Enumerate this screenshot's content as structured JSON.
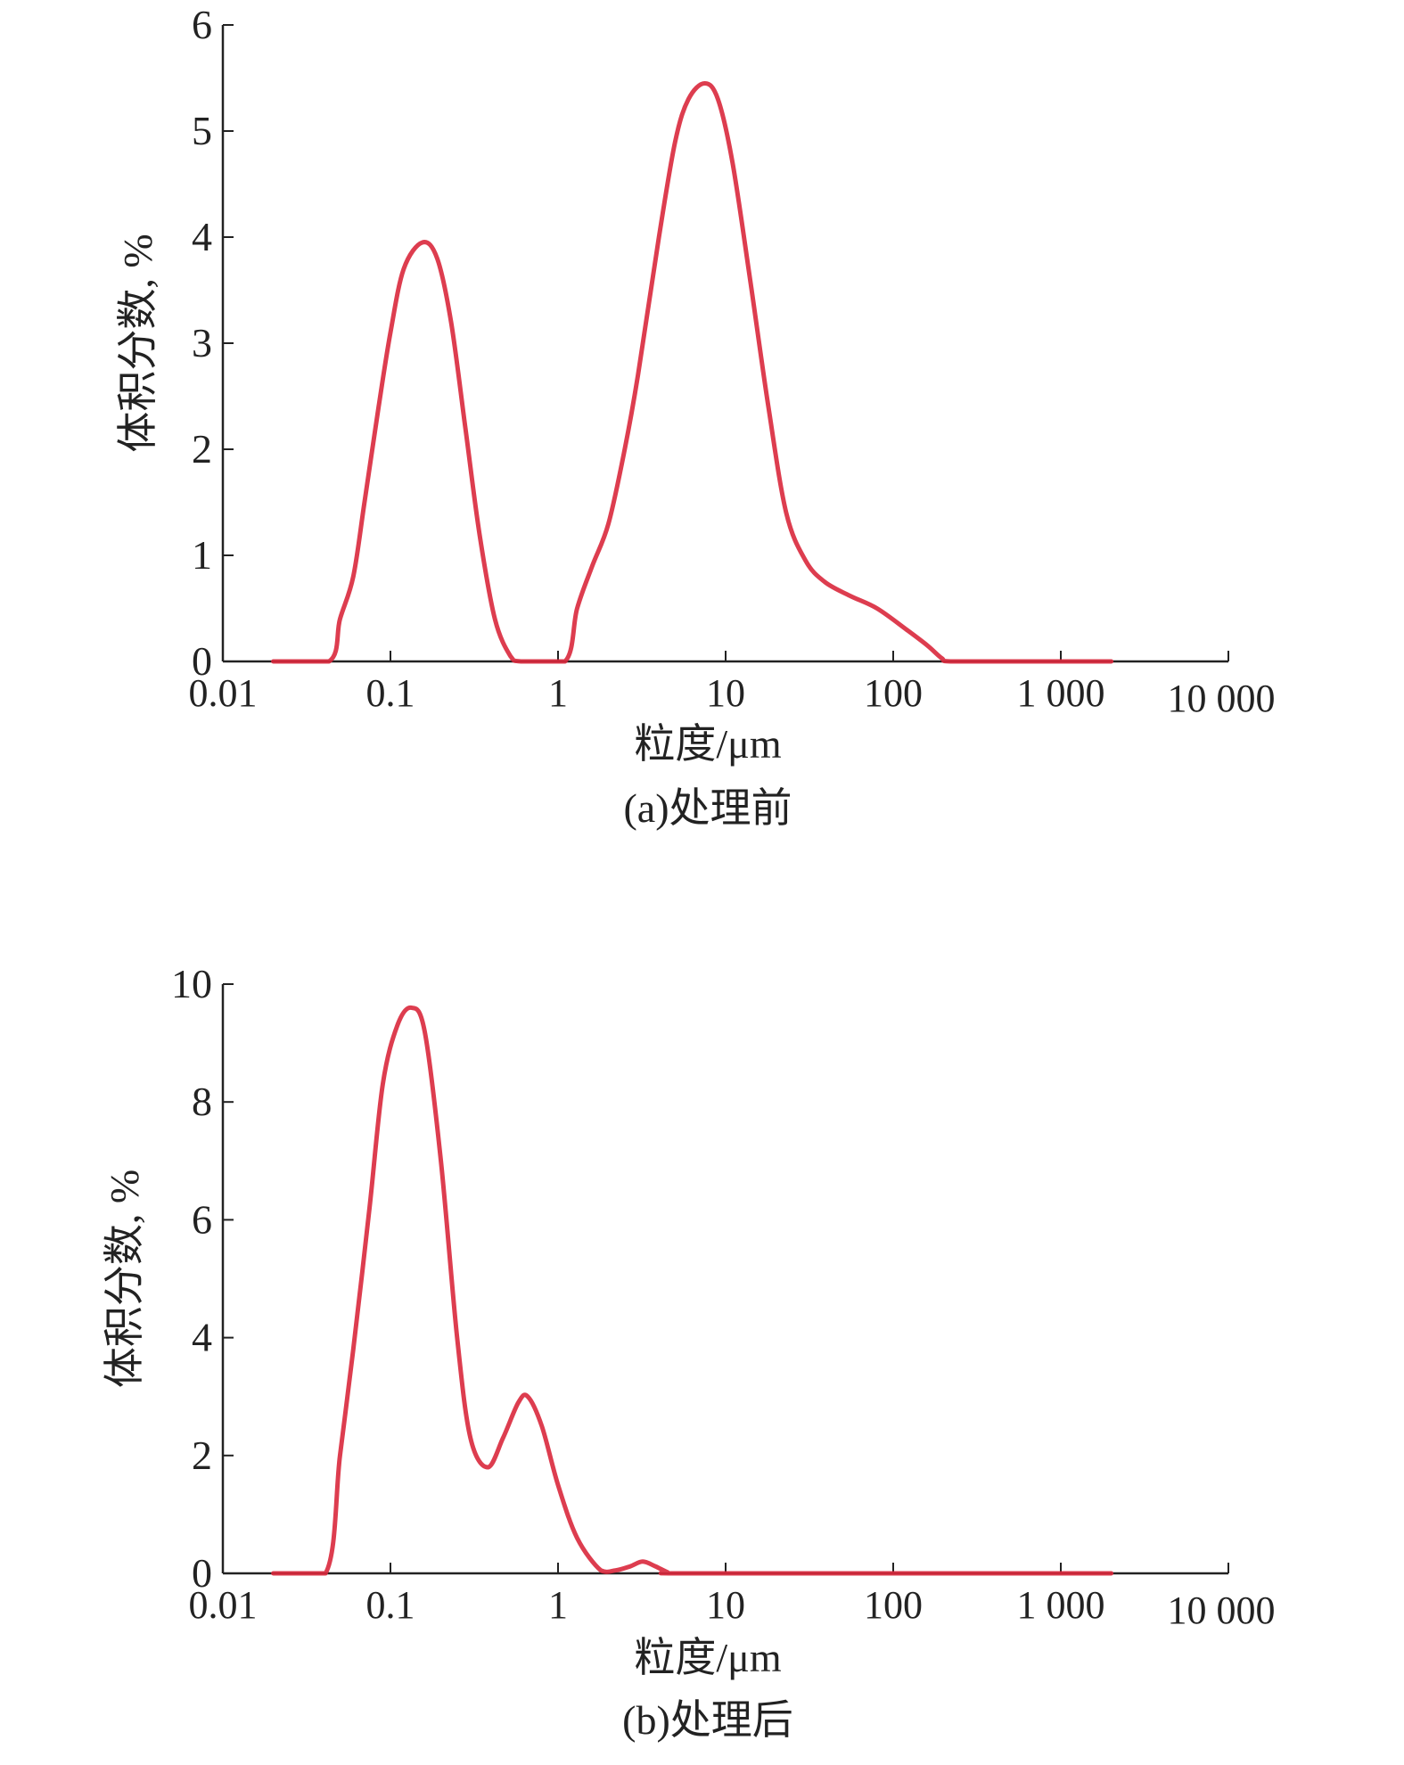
{
  "chart_data": [
    {
      "type": "line",
      "title": "(a)处理前",
      "xlabel": "粒度/μm",
      "ylabel": "体积分数, %",
      "xscale": "log",
      "xlim": [
        0.01,
        10000
      ],
      "ylim": [
        0,
        6
      ],
      "xticks": [
        0.01,
        0.1,
        1,
        10,
        100,
        1000,
        10000
      ],
      "xtick_labels": [
        "0.01",
        "0.1",
        "1",
        "10",
        "100",
        "1 000",
        "10 000"
      ],
      "yticks": [
        0,
        1,
        2,
        3,
        4,
        5,
        6
      ],
      "ytick_labels": [
        "0",
        "1",
        "2",
        "3",
        "4",
        "5",
        "6"
      ],
      "grid": false,
      "color": "#d9283c",
      "series": [
        {
          "name": "处理前",
          "x": [
            0.02,
            0.043,
            0.05,
            0.06,
            0.07,
            0.085,
            0.1,
            0.12,
            0.155,
            0.19,
            0.23,
            0.28,
            0.34,
            0.42,
            0.52,
            0.6,
            1.1,
            1.3,
            1.6,
            2,
            2.5,
            3,
            4,
            5,
            6,
            7.5,
            9,
            11,
            14,
            18,
            23,
            30,
            39,
            55,
            80,
            120,
            160,
            195,
            220,
            500,
            2000
          ],
          "y": [
            0,
            0,
            0.4,
            0.8,
            1.5,
            2.4,
            3.1,
            3.7,
            3.95,
            3.8,
            3.2,
            2.2,
            1.2,
            0.4,
            0.05,
            0,
            0,
            0.5,
            0.9,
            1.3,
            2.0,
            2.7,
            4.0,
            4.9,
            5.3,
            5.45,
            5.3,
            4.7,
            3.6,
            2.4,
            1.4,
            0.95,
            0.75,
            0.62,
            0.5,
            0.3,
            0.15,
            0.03,
            0,
            0,
            0
          ]
        }
      ]
    },
    {
      "type": "line",
      "title": "(b)处理后",
      "xlabel": "粒度/μm",
      "ylabel": "体积分数, %",
      "xscale": "log",
      "xlim": [
        0.01,
        10000
      ],
      "ylim": [
        0,
        10
      ],
      "xticks": [
        0.01,
        0.1,
        1,
        10,
        100,
        1000,
        10000
      ],
      "xtick_labels": [
        "0.01",
        "0.1",
        "1",
        "10",
        "100",
        "1 000",
        "10 000"
      ],
      "yticks": [
        0,
        2,
        4,
        6,
        8,
        10
      ],
      "ytick_labels": [
        "0",
        "2",
        "4",
        "6",
        "8",
        "10"
      ],
      "grid": false,
      "color": "#d9283c",
      "series": [
        {
          "name": "处理后",
          "x": [
            0.02,
            0.041,
            0.05,
            0.06,
            0.075,
            0.09,
            0.11,
            0.133,
            0.16,
            0.2,
            0.25,
            0.3,
            0.38,
            0.47,
            0.58,
            0.66,
            0.8,
            1.0,
            1.3,
            1.8,
            2.2,
            2.7,
            3.2,
            3.8,
            4.5,
            5,
            50,
            2000
          ],
          "y": [
            0,
            0,
            2.0,
            3.8,
            6.2,
            8.3,
            9.3,
            9.6,
            9.2,
            7.0,
            4.0,
            2.3,
            1.8,
            2.3,
            2.9,
            3.0,
            2.5,
            1.5,
            0.6,
            0.05,
            0.05,
            0.12,
            0.2,
            0.12,
            0.02,
            0,
            0,
            0
          ]
        }
      ]
    }
  ]
}
